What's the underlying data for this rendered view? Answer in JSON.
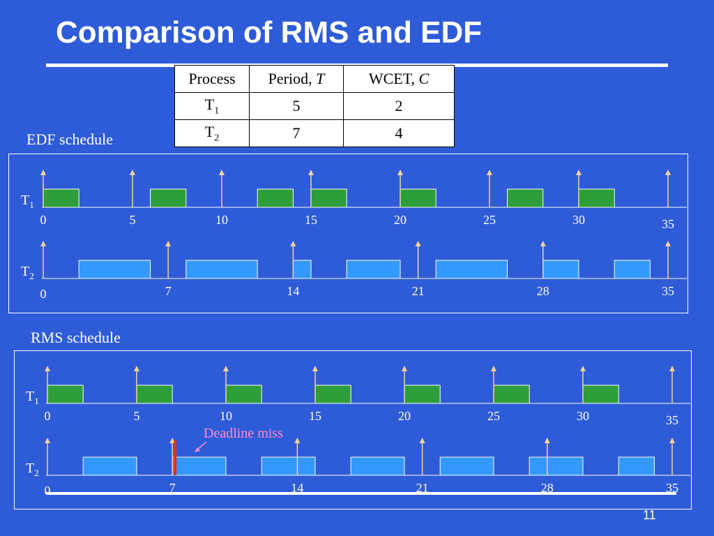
{
  "title": "Comparison of RMS and EDF",
  "table": {
    "headers": [
      "Process",
      "Period, ",
      "T",
      "WCET, ",
      "C"
    ],
    "rows": [
      {
        "name": "T",
        "sub": "1",
        "period": "5",
        "wcet": "2"
      },
      {
        "name": "T",
        "sub": "2",
        "period": "7",
        "wcet": "4"
      }
    ]
  },
  "edf": {
    "label": "EDF schedule",
    "t1_label": "T",
    "t1_sub": "1",
    "t2_label": "T",
    "t2_sub": "2",
    "t1_ticks": [
      "0",
      "5",
      "10",
      "15",
      "20",
      "25",
      "30",
      "35"
    ],
    "t2_ticks": [
      "0",
      "7",
      "14",
      "21",
      "28",
      "35"
    ],
    "t1_jobs": [
      [
        0,
        2
      ],
      [
        6,
        8
      ],
      [
        12,
        14
      ],
      [
        15,
        17
      ],
      [
        20,
        22
      ],
      [
        26,
        28
      ],
      [
        30,
        32
      ]
    ],
    "t2_jobs": [
      [
        2,
        6
      ],
      [
        8,
        12
      ],
      [
        14,
        15
      ],
      [
        17,
        20
      ],
      [
        22,
        26
      ],
      [
        28,
        30
      ],
      [
        32,
        34
      ]
    ]
  },
  "rms": {
    "label": "RMS schedule",
    "t1_label": "T",
    "t1_sub": "1",
    "t2_label": "T",
    "t2_sub": "2",
    "t1_ticks": [
      "0",
      "5",
      "10",
      "15",
      "20",
      "25",
      "30",
      "35"
    ],
    "t2_ticks": [
      "0",
      "7",
      "14",
      "21",
      "28",
      "35"
    ],
    "t1_jobs": [
      [
        0,
        2
      ],
      [
        5,
        7
      ],
      [
        10,
        12
      ],
      [
        15,
        17
      ],
      [
        20,
        22
      ],
      [
        25,
        27
      ],
      [
        30,
        32
      ]
    ],
    "t2_jobs": [
      [
        2,
        5
      ],
      [
        7,
        10
      ],
      [
        12,
        15
      ],
      [
        17,
        20
      ],
      [
        22,
        25
      ],
      [
        27,
        30
      ],
      [
        32,
        34
      ]
    ],
    "deadline_miss_label": "Deadline miss",
    "deadline_miss_time": 7
  },
  "page_number": "11",
  "colors": {
    "background": "#2e5cd8",
    "t1_job": "#2e9e3a",
    "t2_job": "#3399ff",
    "arrow": "#f6d29a",
    "deadline_miss": "#e0301e",
    "deadline_label": "#ff88cc"
  }
}
